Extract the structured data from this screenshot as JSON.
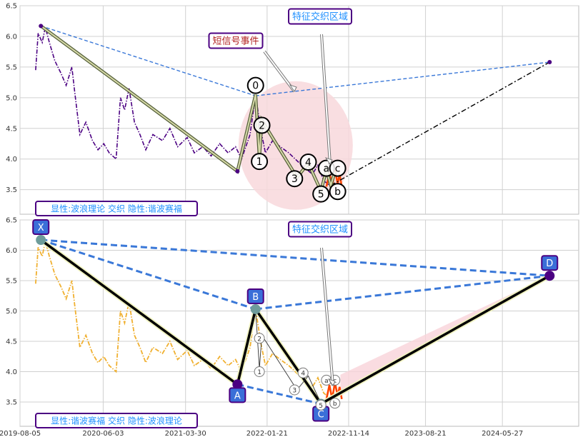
{
  "chart_data": [
    {
      "type": "line",
      "panel": "top",
      "ylim": [
        3.1,
        6.5
      ],
      "yticks": [
        "3.5",
        "4.0",
        "4.5",
        "5.0",
        "5.5",
        "6.0",
        "6.5"
      ],
      "xlim": [
        "2019-08-05",
        "2025-03-01"
      ],
      "series": [
        {
          "color": "#4B0082",
          "style": "dash-dot",
          "points": [
            [
              "2019-10-01",
              5.45
            ],
            [
              "2019-10-10",
              6.05
            ],
            [
              "2019-10-25",
              5.9
            ],
            [
              "2019-11-05",
              6.15
            ],
            [
              "2019-11-20",
              5.9
            ],
            [
              "2019-12-10",
              5.6
            ],
            [
              "2020-01-01",
              5.4
            ],
            [
              "2020-01-20",
              5.2
            ],
            [
              "2020-02-10",
              5.5
            ],
            [
              "2020-02-20",
              5.1
            ],
            [
              "2020-03-10",
              4.4
            ],
            [
              "2020-04-01",
              4.6
            ],
            [
              "2020-04-25",
              4.3
            ],
            [
              "2020-05-15",
              4.15
            ],
            [
              "2020-06-05",
              4.25
            ],
            [
              "2020-06-25",
              4.1
            ],
            [
              "2020-07-20",
              4.0
            ],
            [
              "2020-08-05",
              5.0
            ],
            [
              "2020-08-20",
              4.8
            ],
            [
              "2020-09-05",
              5.15
            ],
            [
              "2020-09-25",
              4.6
            ],
            [
              "2020-10-15",
              4.4
            ],
            [
              "2020-11-05",
              4.15
            ],
            [
              "2020-12-01",
              4.4
            ],
            [
              "2021-01-05",
              4.3
            ],
            [
              "2021-02-01",
              4.5
            ],
            [
              "2021-03-01",
              4.2
            ],
            [
              "2021-04-05",
              4.35
            ],
            [
              "2021-05-01",
              4.1
            ],
            [
              "2021-06-01",
              4.2
            ],
            [
              "2021-07-01",
              4.05
            ],
            [
              "2021-08-01",
              4.25
            ],
            [
              "2021-09-01",
              4.1
            ],
            [
              "2021-09-28",
              4.2
            ],
            [
              "2021-10-20",
              4.0
            ],
            [
              "2021-11-20",
              4.4
            ],
            [
              "2021-12-10",
              5.05
            ],
            [
              "2021-12-28",
              4.5
            ],
            [
              "2022-01-15",
              4.1
            ],
            [
              "2022-02-10",
              4.3
            ],
            [
              "2022-03-10",
              4.2
            ],
            [
              "2022-04-10",
              4.1
            ],
            [
              "2022-05-15",
              3.95
            ],
            [
              "2022-06-10",
              3.85
            ],
            [
              "2022-07-05",
              3.75
            ],
            [
              "2022-07-25",
              3.9
            ],
            [
              "2022-08-15",
              3.65
            ],
            [
              "2022-09-10",
              3.55
            ]
          ]
        },
        {
          "color": "#FF4500",
          "style": "solid",
          "points": [
            [
              "2022-08-25",
              3.55
            ],
            [
              "2022-09-05",
              3.78
            ],
            [
              "2022-09-15",
              3.55
            ],
            [
              "2022-09-25",
              3.82
            ],
            [
              "2022-10-05",
              3.6
            ],
            [
              "2022-10-12",
              3.75
            ],
            [
              "2022-10-20",
              3.55
            ]
          ]
        }
      ],
      "wave_path": [
        [
          "2019-10-20",
          6.17
        ],
        [
          "2021-10-05",
          3.8
        ],
        [
          "2021-12-10",
          5.05
        ],
        [
          "2021-12-24",
          4.03
        ],
        [
          "2022-01-02",
          4.63
        ],
        [
          "2022-05-10",
          3.7
        ],
        [
          "2022-06-20",
          3.93
        ],
        [
          "2022-08-05",
          3.48
        ],
        [
          "2022-08-25",
          3.82
        ],
        [
          "2022-09-10",
          3.57
        ],
        [
          "2022-09-25",
          3.79
        ]
      ],
      "dashed_blue_lines": [
        [
          [
            "2019-10-20",
            6.17
          ],
          [
            "2021-12-10",
            5.03
          ]
        ],
        [
          [
            "2021-12-10",
            5.03
          ],
          [
            "2024-11-15",
            5.58
          ]
        ]
      ],
      "dashdot_black_lines": [
        [
          [
            "2021-10-05",
            3.8
          ],
          [
            "2021-12-10",
            5.05
          ]
        ],
        [
          [
            "2022-09-10",
            3.57
          ],
          [
            "2024-11-15",
            5.58
          ]
        ]
      ],
      "labels": [
        {
          "text": "0",
          "x": "2021-12-10",
          "y": 5.2
        },
        {
          "text": "1",
          "x": "2021-12-24",
          "y": 3.96
        },
        {
          "text": "2",
          "x": "2022-01-02",
          "y": 4.55
        },
        {
          "text": "3",
          "x": "2022-05-01",
          "y": 3.68
        },
        {
          "text": "4",
          "x": "2022-06-20",
          "y": 3.95
        },
        {
          "text": "5",
          "x": "2022-08-05",
          "y": 3.43
        },
        {
          "text": "a",
          "x": "2022-08-25",
          "y": 3.85
        },
        {
          "text": "b",
          "x": "2022-10-05",
          "y": 3.47
        },
        {
          "text": "c",
          "x": "2022-10-05",
          "y": 3.85
        }
      ],
      "annotations": [
        {
          "text": "特征交织区域",
          "color": "#1E90FF"
        },
        {
          "text": "短信号事件",
          "color": "#B22222"
        }
      ],
      "footer_label": "显性:波浪理论 交织 隐性:谐波赛福"
    },
    {
      "type": "line",
      "panel": "bottom",
      "ylim": [
        3.1,
        6.5
      ],
      "yticks": [
        "3.5",
        "4.0",
        "4.5",
        "5.0",
        "5.5",
        "6.0",
        "6.5"
      ],
      "xlim": [
        "2019-08-05",
        "2025-03-01"
      ],
      "xticks": [
        "2019-08-05",
        "2020-06-03",
        "2021-03-30",
        "2022-01-21",
        "2022-11-14",
        "2023-08-21",
        "2024-05-27"
      ],
      "series": [
        {
          "color": "#F0B030",
          "style": "dash-dot",
          "points": [
            [
              "2019-10-01",
              5.45
            ],
            [
              "2019-10-10",
              6.05
            ],
            [
              "2019-10-25",
              5.9
            ],
            [
              "2019-11-05",
              6.15
            ],
            [
              "2019-11-20",
              5.9
            ],
            [
              "2019-12-10",
              5.6
            ],
            [
              "2020-01-01",
              5.4
            ],
            [
              "2020-01-20",
              5.2
            ],
            [
              "2020-02-10",
              5.5
            ],
            [
              "2020-02-20",
              5.1
            ],
            [
              "2020-03-10",
              4.4
            ],
            [
              "2020-04-01",
              4.6
            ],
            [
              "2020-04-25",
              4.3
            ],
            [
              "2020-05-15",
              4.15
            ],
            [
              "2020-06-05",
              4.25
            ],
            [
              "2020-06-25",
              4.1
            ],
            [
              "2020-07-20",
              4.0
            ],
            [
              "2020-08-05",
              5.0
            ],
            [
              "2020-08-20",
              4.8
            ],
            [
              "2020-09-05",
              5.15
            ],
            [
              "2020-09-25",
              4.6
            ],
            [
              "2020-10-15",
              4.4
            ],
            [
              "2020-11-05",
              4.15
            ],
            [
              "2020-12-01",
              4.4
            ],
            [
              "2021-01-05",
              4.3
            ],
            [
              "2021-02-01",
              4.5
            ],
            [
              "2021-03-01",
              4.2
            ],
            [
              "2021-04-05",
              4.35
            ],
            [
              "2021-05-01",
              4.1
            ],
            [
              "2021-06-01",
              4.2
            ],
            [
              "2021-07-01",
              4.05
            ],
            [
              "2021-08-01",
              4.25
            ],
            [
              "2021-09-01",
              4.1
            ],
            [
              "2021-09-28",
              4.2
            ],
            [
              "2021-10-20",
              4.0
            ],
            [
              "2021-11-20",
              4.4
            ],
            [
              "2021-12-10",
              5.05
            ],
            [
              "2021-12-28",
              4.5
            ],
            [
              "2022-01-15",
              4.1
            ],
            [
              "2022-02-10",
              4.3
            ],
            [
              "2022-03-10",
              4.2
            ],
            [
              "2022-04-10",
              4.1
            ],
            [
              "2022-05-15",
              3.95
            ],
            [
              "2022-06-10",
              3.85
            ],
            [
              "2022-07-05",
              3.75
            ],
            [
              "2022-07-25",
              3.9
            ],
            [
              "2022-08-15",
              3.65
            ],
            [
              "2022-09-10",
              3.55
            ]
          ]
        },
        {
          "color": "#FF4500",
          "style": "solid",
          "points": [
            [
              "2022-08-25",
              3.55
            ],
            [
              "2022-09-05",
              3.78
            ],
            [
              "2022-09-15",
              3.55
            ],
            [
              "2022-09-25",
              3.82
            ],
            [
              "2022-10-05",
              3.6
            ],
            [
              "2022-10-12",
              3.75
            ],
            [
              "2022-10-20",
              3.55
            ]
          ]
        }
      ],
      "harmonic_points": [
        {
          "name": "X",
          "x": "2019-10-20",
          "y": 6.17
        },
        {
          "name": "A",
          "x": "2021-10-05",
          "y": 3.79
        },
        {
          "name": "B",
          "x": "2021-12-10",
          "y": 5.03
        },
        {
          "name": "C",
          "x": "2022-08-05",
          "y": 3.47
        },
        {
          "name": "D",
          "x": "2024-11-15",
          "y": 5.58
        }
      ],
      "small_labels": [
        {
          "text": "1",
          "x": "2021-12-24",
          "y": 4.0
        },
        {
          "text": "2",
          "x": "2021-12-24",
          "y": 4.55
        },
        {
          "text": "3",
          "x": "2022-05-01",
          "y": 3.7
        },
        {
          "text": "4",
          "x": "2022-06-01",
          "y": 3.98
        },
        {
          "text": "5",
          "x": "2022-08-05",
          "y": 3.45
        },
        {
          "text": "a",
          "x": "2022-08-25",
          "y": 3.86
        },
        {
          "text": "b",
          "x": "2022-09-25",
          "y": 3.48
        },
        {
          "text": "c",
          "x": "2022-09-25",
          "y": 3.86
        }
      ],
      "annotations": [
        {
          "text": "特征交织区域",
          "color": "#1E90FF"
        }
      ],
      "footer_label": "显性:谐波赛福 交织 隐性:波浪理论"
    }
  ],
  "colors": {
    "grid": "#d0d0d0",
    "panel_bg": "#ffffff",
    "label_border": "#4B0082",
    "label_text": "#1E90FF",
    "point_box": "#3A6FD8",
    "dashed_blue": "#3A78D8",
    "ellipse_fill": "#F8D8DC"
  }
}
